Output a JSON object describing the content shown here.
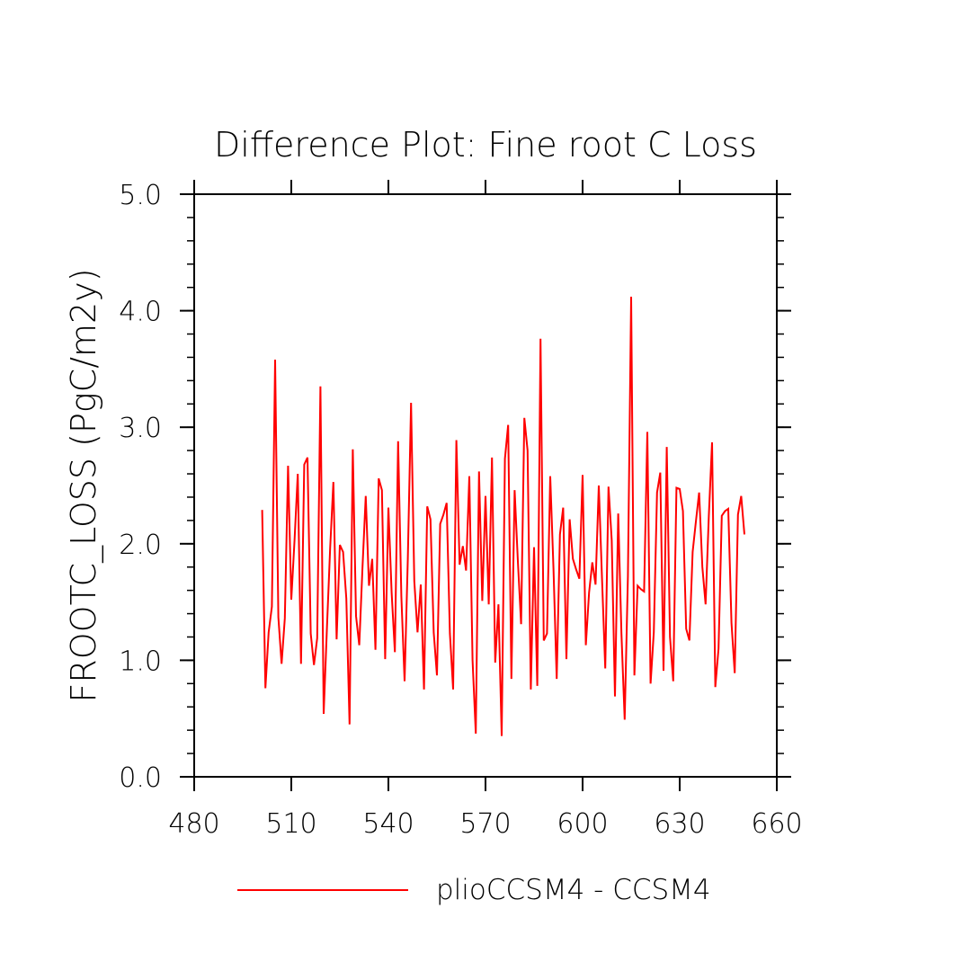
{
  "chart_data": {
    "type": "line",
    "title": "Difference Plot: Fine root C Loss",
    "ylabel": "FROOTC_LOSS  (PgC/m2y)",
    "xlabel": "",
    "xlim": [
      480,
      660
    ],
    "ylim": [
      0,
      5
    ],
    "xticks": [
      480,
      510,
      540,
      570,
      600,
      630,
      660
    ],
    "xtick_labels": [
      "480",
      "510",
      "540",
      "570",
      "600",
      "630",
      "660"
    ],
    "yticks": [
      0,
      1,
      2,
      3,
      4,
      5
    ],
    "ytick_labels": [
      "0.0",
      "1.0",
      "2.0",
      "3.0",
      "4.0",
      "5.0"
    ],
    "grid": false,
    "legend": "bottom-center",
    "series": [
      {
        "name": "plioCCSM4 - CCSM4",
        "color": "#ff0000",
        "x": [
          501,
          502,
          503,
          504,
          505,
          506,
          507,
          508,
          509,
          510,
          511,
          512,
          513,
          514,
          515,
          516,
          517,
          518,
          519,
          520,
          521,
          522,
          523,
          524,
          525,
          526,
          527,
          528,
          529,
          530,
          531,
          532,
          533,
          534,
          535,
          536,
          537,
          538,
          539,
          540,
          541,
          542,
          543,
          544,
          545,
          546,
          547,
          548,
          549,
          550,
          551,
          552,
          553,
          554,
          555,
          556,
          557,
          558,
          559,
          560,
          561,
          562,
          563,
          564,
          565,
          566,
          567,
          568,
          569,
          570,
          571,
          572,
          573,
          574,
          575,
          576,
          577,
          578,
          579,
          580,
          581,
          582,
          583,
          584,
          585,
          586,
          587,
          588,
          589,
          590,
          591,
          592,
          593,
          594,
          595,
          596,
          597,
          598,
          599,
          600,
          601,
          602,
          603,
          604,
          605,
          606,
          607,
          608,
          609,
          610,
          611,
          612,
          613,
          614,
          615,
          616,
          617,
          618,
          619,
          620,
          621,
          622,
          623,
          624,
          625,
          626,
          627,
          628,
          629,
          630,
          631,
          632,
          633,
          634,
          635,
          636,
          637,
          638,
          639,
          640,
          641,
          642,
          643,
          644,
          645,
          646,
          647,
          648,
          649,
          650
        ],
        "values": [
          2.29,
          0.76,
          1.24,
          1.46,
          3.58,
          1.37,
          0.97,
          1.36,
          2.67,
          1.52,
          2.03,
          2.6,
          0.97,
          2.68,
          2.74,
          1.23,
          0.96,
          1.19,
          3.35,
          0.54,
          1.27,
          1.96,
          2.53,
          1.18,
          1.99,
          1.93,
          1.53,
          0.45,
          2.81,
          1.38,
          1.13,
          1.8,
          2.41,
          1.64,
          1.87,
          1.09,
          2.56,
          2.46,
          1.01,
          2.31,
          1.58,
          1.07,
          2.88,
          1.55,
          0.82,
          1.87,
          3.21,
          1.68,
          1.24,
          1.65,
          0.75,
          2.32,
          2.21,
          1.24,
          0.87,
          2.17,
          2.25,
          2.35,
          1.23,
          0.75,
          2.89,
          1.82,
          1.98,
          1.77,
          2.58,
          1.0,
          0.37,
          2.62,
          1.51,
          2.41,
          1.48,
          2.74,
          0.98,
          1.48,
          0.35,
          2.73,
          3.02,
          0.84,
          2.46,
          1.85,
          1.31,
          3.08,
          2.8,
          0.75,
          1.97,
          0.78,
          3.76,
          1.17,
          1.23,
          2.58,
          1.79,
          0.84,
          2.08,
          2.31,
          1.01,
          2.21,
          1.87,
          1.78,
          1.7,
          2.59,
          1.13,
          1.58,
          1.84,
          1.65,
          2.5,
          1.7,
          0.93,
          2.49,
          2.03,
          0.69,
          2.26,
          1.23,
          0.49,
          1.72,
          4.12,
          0.87,
          1.64,
          1.61,
          1.59,
          2.96,
          0.8,
          1.24,
          2.44,
          2.61,
          0.91,
          2.83,
          1.2,
          0.82,
          2.48,
          2.47,
          2.28,
          1.27,
          1.17,
          1.93,
          2.19,
          2.44,
          1.8,
          1.48,
          2.24,
          2.87,
          0.77,
          1.1,
          2.24,
          2.28,
          2.3,
          1.32,
          0.89,
          2.25,
          2.41,
          2.08
        ]
      }
    ]
  }
}
